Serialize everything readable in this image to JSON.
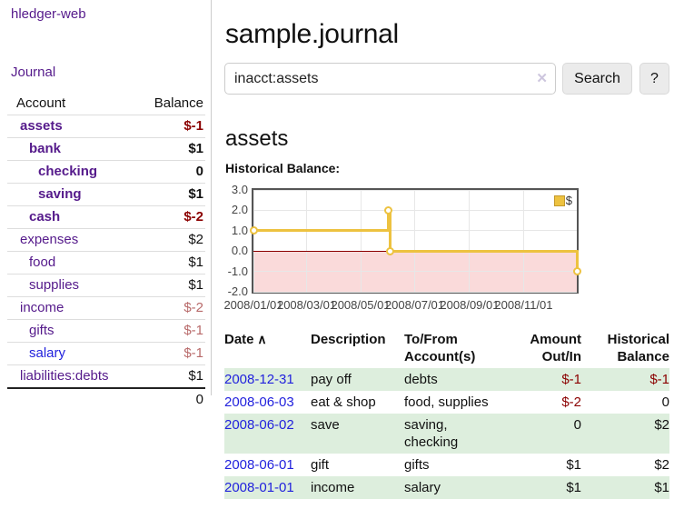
{
  "app_title": "hledger-web",
  "sidebar": {
    "journal_link": "Journal",
    "accounts_table": {
      "account_header": "Account",
      "balance_header": "Balance",
      "rows": [
        {
          "name": "assets",
          "balance": "$-1",
          "depth": 1,
          "bold": true,
          "balance_style": "neg-strong",
          "link_color": "purple"
        },
        {
          "name": "bank",
          "balance": "$1",
          "depth": 2,
          "bold": true,
          "balance_style": "pos",
          "link_color": "purple"
        },
        {
          "name": "checking",
          "balance": "0",
          "depth": 3,
          "bold": true,
          "balance_style": "pos",
          "link_color": "purple"
        },
        {
          "name": "saving",
          "balance": "$1",
          "depth": 3,
          "bold": true,
          "balance_style": "pos",
          "link_color": "purple"
        },
        {
          "name": "cash",
          "balance": "$-2",
          "depth": 2,
          "bold": true,
          "balance_style": "neg-strong",
          "link_color": "purple"
        },
        {
          "name": "expenses",
          "balance": "$2",
          "depth": 1,
          "bold": false,
          "balance_style": "pos",
          "link_color": "purple"
        },
        {
          "name": "food",
          "balance": "$1",
          "depth": 2,
          "bold": false,
          "balance_style": "pos",
          "link_color": "purple"
        },
        {
          "name": "supplies",
          "balance": "$1",
          "depth": 2,
          "bold": false,
          "balance_style": "pos",
          "link_color": "purple"
        },
        {
          "name": "income",
          "balance": "$-2",
          "depth": 1,
          "bold": false,
          "balance_style": "neg-soft",
          "link_color": "purple"
        },
        {
          "name": "gifts",
          "balance": "$-1",
          "depth": 2,
          "bold": false,
          "balance_style": "neg-soft",
          "link_color": "purple"
        },
        {
          "name": "salary",
          "balance": "$-1",
          "depth": 2,
          "bold": false,
          "balance_style": "neg-soft",
          "link_color": "blue"
        },
        {
          "name": "liabilities:debts",
          "balance": "$1",
          "depth": 1,
          "bold": false,
          "balance_style": "pos",
          "link_color": "purple"
        }
      ],
      "total": "0"
    }
  },
  "main": {
    "title": "sample.journal",
    "search": {
      "value": "inacct:assets",
      "clear_icon": "✕",
      "search_button": "Search",
      "help_button": "?"
    },
    "account_heading": "assets",
    "chart_heading": "Historical Balance:"
  },
  "chart_data": {
    "type": "line",
    "title": "Historical Balance",
    "step": true,
    "xlim": [
      "2008-01-01",
      "2008-12-31"
    ],
    "ylim": [
      -2.0,
      3.0
    ],
    "yticks": [
      3.0,
      2.0,
      1.0,
      0.0,
      -1.0,
      -2.0
    ],
    "xticks": [
      "2008-01-01",
      "2008-03-01",
      "2008-05-01",
      "2008-07-01",
      "2008-09-01",
      "2008-11-01"
    ],
    "xtick_label_separator": "/",
    "grid": true,
    "legend": {
      "label": "$",
      "position": "top-right"
    },
    "series": [
      {
        "name": "$",
        "color": "#edc240",
        "points": [
          [
            "2008-01-01",
            1
          ],
          [
            "2008-06-01",
            2
          ],
          [
            "2008-06-03",
            0
          ],
          [
            "2008-12-31",
            -1
          ]
        ]
      }
    ],
    "zero_line_color": "#8b0000",
    "negative_region_color": "#fadada",
    "swatch_border": "#c3992c"
  },
  "transactions": {
    "sort_icon": "∧",
    "columns": [
      {
        "label": "Date",
        "align": "left",
        "sortable": true
      },
      {
        "label": "Description",
        "align": "left",
        "sortable": false
      },
      {
        "label": "To/From\nAccount(s)",
        "align": "left",
        "sortable": false
      },
      {
        "label": "Amount\nOut/In",
        "align": "right",
        "sortable": false
      },
      {
        "label": "Historical\nBalance",
        "align": "right",
        "sortable": false
      }
    ],
    "rows": [
      {
        "date": "2008-12-31",
        "description": "pay off",
        "accounts": "debts",
        "amount": "$-1",
        "balance": "$-1"
      },
      {
        "date": "2008-06-03",
        "description": "eat & shop",
        "accounts": "food, supplies",
        "amount": "$-2",
        "balance": "0"
      },
      {
        "date": "2008-06-02",
        "description": "save",
        "accounts": "saving,\nchecking",
        "amount": "0",
        "balance": "$2"
      },
      {
        "date": "2008-06-01",
        "description": "gift",
        "accounts": "gifts",
        "amount": "$1",
        "balance": "$2"
      },
      {
        "date": "2008-01-01",
        "description": "income",
        "accounts": "salary",
        "amount": "$1",
        "balance": "$1"
      }
    ]
  },
  "colors": {
    "link_purple": "#551a8b",
    "link_blue": "#2222dd",
    "negative_strong": "#8b0000",
    "negative_soft": "#b86a6a",
    "row_stripe_green": "#ddeedd",
    "chart_line": "#edc240"
  }
}
